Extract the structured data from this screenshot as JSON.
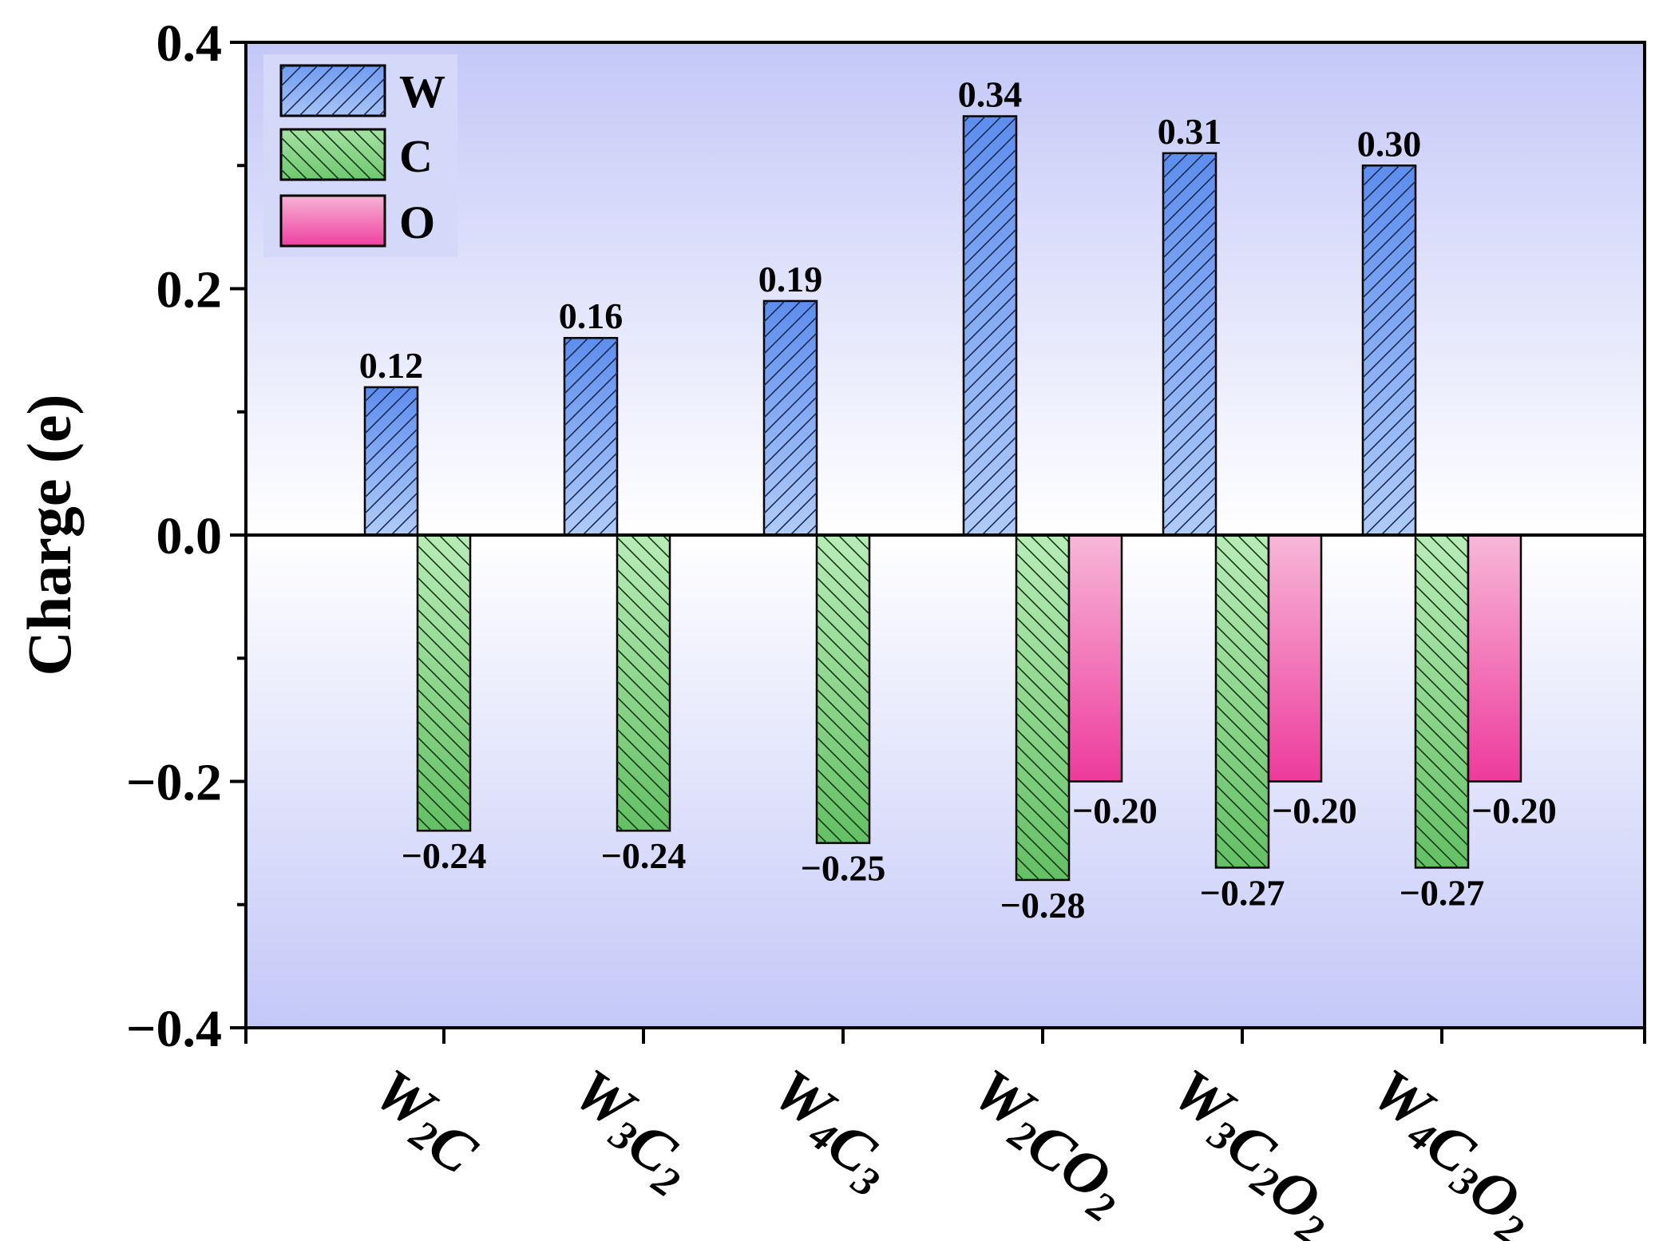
{
  "chart_data": {
    "type": "bar",
    "ylabel": "Charge (e)",
    "xlabel": "",
    "ylim": [
      -0.4,
      0.4
    ],
    "yticks": [
      "−0.4",
      "−0.2",
      "0.0",
      "0.2",
      "0.4"
    ],
    "grid": false,
    "legend_position": "top-left",
    "background": "vertical gradient, lavender-blue at top and bottom, white at zero line",
    "categories": [
      {
        "parts": [
          "W",
          "2",
          "C"
        ]
      },
      {
        "parts": [
          "W",
          "3",
          "C",
          "2"
        ]
      },
      {
        "parts": [
          "W",
          "4",
          "C",
          "3"
        ]
      },
      {
        "parts": [
          "W",
          "2",
          "CO",
          "2"
        ]
      },
      {
        "parts": [
          "W",
          "3",
          "C",
          "2",
          "O",
          "2"
        ]
      },
      {
        "parts": [
          "W",
          "4",
          "C",
          "3",
          "O",
          "2"
        ]
      }
    ],
    "category_text": [
      "W2C",
      "W3C2",
      "W4C3",
      "W2CO2",
      "W3C2O2",
      "W4C3O2"
    ],
    "series": [
      {
        "name": "W",
        "pattern": "forward diagonal hatch",
        "color": "#6f9cf0",
        "values": [
          0.12,
          0.16,
          0.19,
          0.34,
          0.31,
          0.3
        ],
        "labels": [
          "0.12",
          "0.16",
          "0.19",
          "0.34",
          "0.31",
          "0.30"
        ]
      },
      {
        "name": "C",
        "pattern": "backward diagonal hatch",
        "color": "#7fd07f",
        "values": [
          -0.24,
          -0.24,
          -0.25,
          -0.28,
          -0.27,
          -0.27
        ],
        "labels": [
          "−0.24",
          "−0.24",
          "−0.25",
          "−0.28",
          "−0.27",
          "−0.27"
        ]
      },
      {
        "name": "O",
        "pattern": "none",
        "color": "#ee3fa0",
        "values": [
          null,
          null,
          null,
          -0.2,
          -0.2,
          -0.2
        ],
        "labels": [
          "",
          "",
          "",
          "−0.20",
          "−0.20",
          "−0.20"
        ]
      }
    ]
  }
}
